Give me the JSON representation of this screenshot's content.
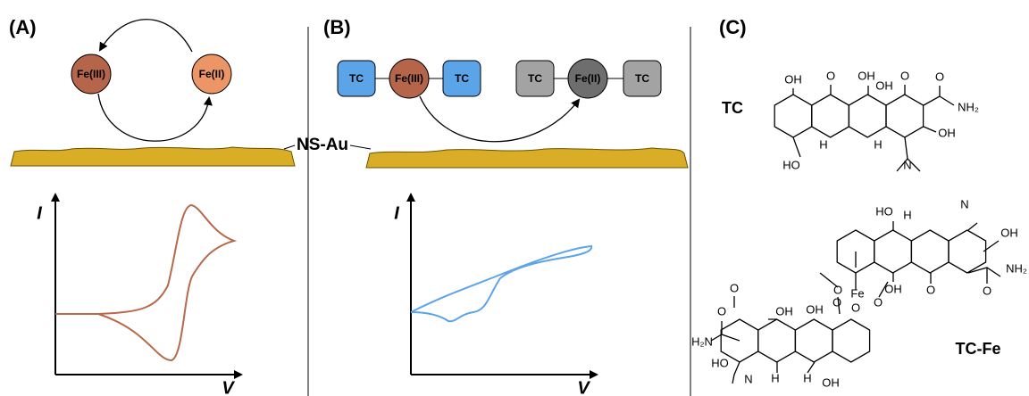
{
  "panel_a": {
    "label": "(A)",
    "nodes": [
      "Fe(III)",
      "Fe(II)"
    ],
    "y_axis": "I",
    "x_axis": "V"
  },
  "electrode": "NS-Au",
  "panel_b": {
    "label": "(B)",
    "complexes": [
      [
        "TC",
        "Fe(III)",
        "TC"
      ],
      [
        "TC",
        "Fe(II)",
        "TC"
      ]
    ],
    "y_axis": "I",
    "x_axis": "V"
  },
  "panel_c": {
    "label": "(C)",
    "tc": {
      "name": "TC",
      "atoms": [
        "OH",
        "O",
        "OH",
        "OH",
        "O",
        "O",
        "NH₂",
        "OH",
        "HO",
        "H",
        "H",
        "N"
      ]
    },
    "tc_fe": {
      "name": "TC-Fe",
      "metal": "Fe",
      "atoms": [
        "HO",
        "H",
        "N",
        "OH",
        "NH₂",
        "O",
        "OH",
        "O",
        "O",
        "O",
        "O",
        "O",
        "OH",
        "OH",
        "H₂N",
        "O",
        "HO",
        "H",
        "H",
        "N",
        "OH",
        "O"
      ]
    }
  }
}
